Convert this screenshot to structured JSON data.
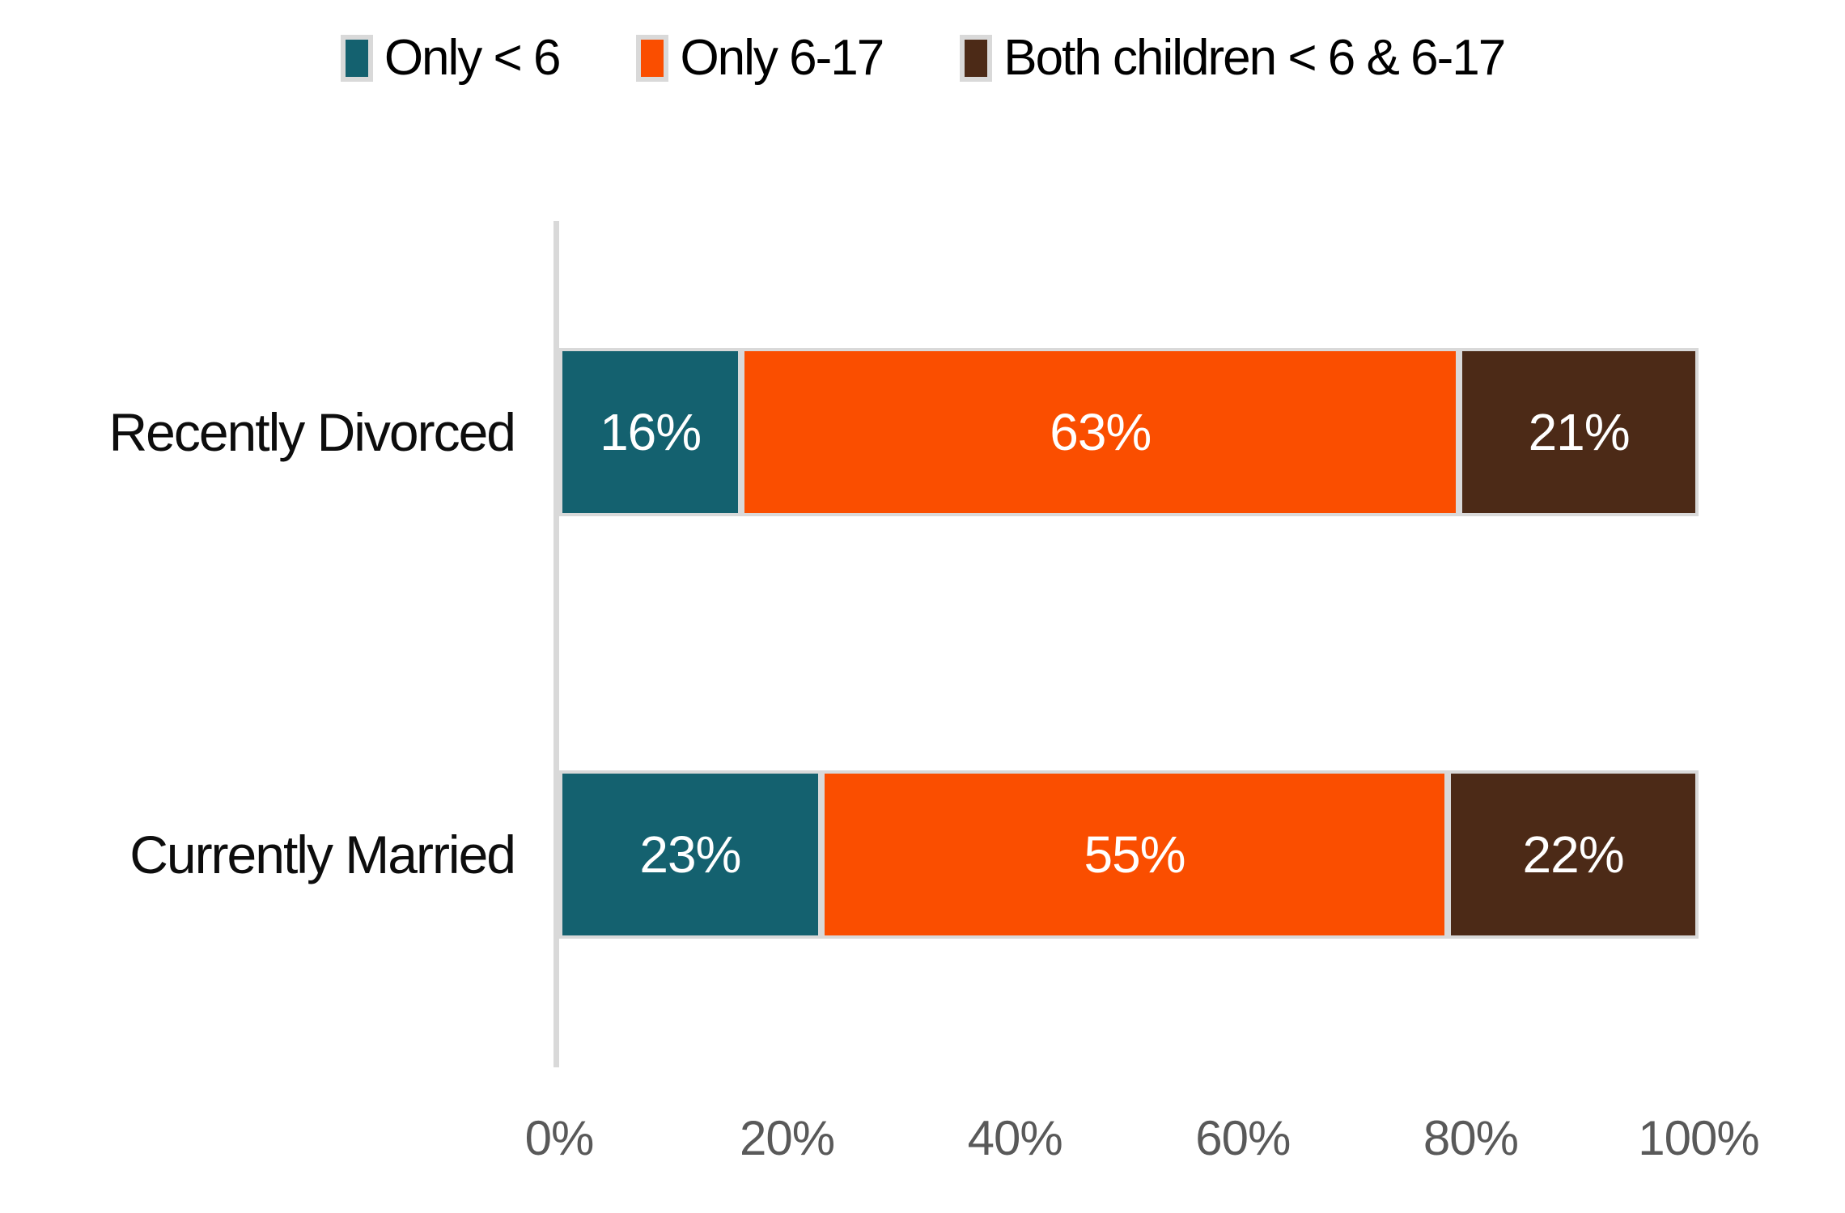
{
  "chart_data": {
    "type": "bar",
    "orientation": "horizontal-stacked",
    "title": "",
    "categories": [
      "Recently Divorced",
      "Currently Married"
    ],
    "series": [
      {
        "name": "Only < 6",
        "color": "#14616f",
        "values": [
          16,
          23
        ],
        "labels": [
          "16%",
          "23%"
        ]
      },
      {
        "name": "Only 6-17",
        "color": "#fa4e00",
        "values": [
          63,
          55
        ],
        "labels": [
          "63%",
          "55%"
        ]
      },
      {
        "name": "Both children < 6 & 6-17",
        "color": "#4c2a17",
        "values": [
          21,
          22
        ],
        "labels": [
          "21%",
          "22%"
        ]
      }
    ],
    "x_ticks": [
      "0%",
      "20%",
      "40%",
      "60%",
      "80%",
      "100%"
    ],
    "xlim": [
      0,
      100
    ],
    "legend_position": "top",
    "grid": false,
    "data_label_color": "#ffffff",
    "axis_line_color": "#d9d9d9",
    "tick_label_color": "#595959",
    "segment_border_color": "#d9d9d9"
  }
}
